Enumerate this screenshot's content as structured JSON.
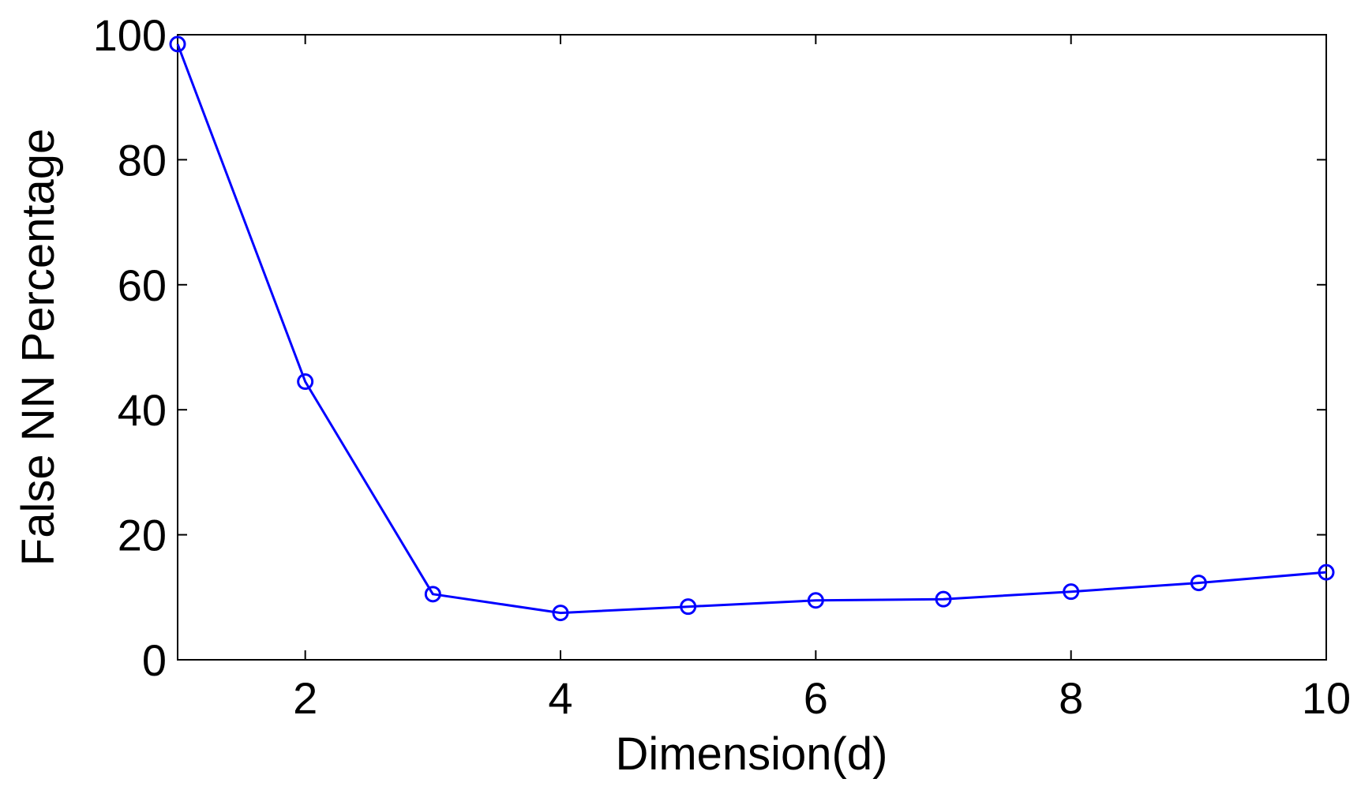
{
  "chart_data": {
    "type": "line",
    "title": "",
    "xlabel": "Dimension(d)",
    "ylabel": "False NN Percentage",
    "xlim": [
      1,
      10
    ],
    "ylim": [
      0,
      100
    ],
    "xticks": [
      2,
      4,
      6,
      8,
      10
    ],
    "yticks": [
      0,
      20,
      40,
      60,
      80,
      100
    ],
    "grid": false,
    "series": [
      {
        "color": "#0000ff",
        "marker": "circle",
        "x": [
          1,
          2,
          3,
          4,
          5,
          6,
          7,
          8,
          9,
          10
        ],
        "y": [
          98.5,
          44.5,
          10.5,
          7.5,
          8.5,
          9.5,
          9.7,
          10.9,
          12.3,
          14.0
        ]
      }
    ]
  }
}
